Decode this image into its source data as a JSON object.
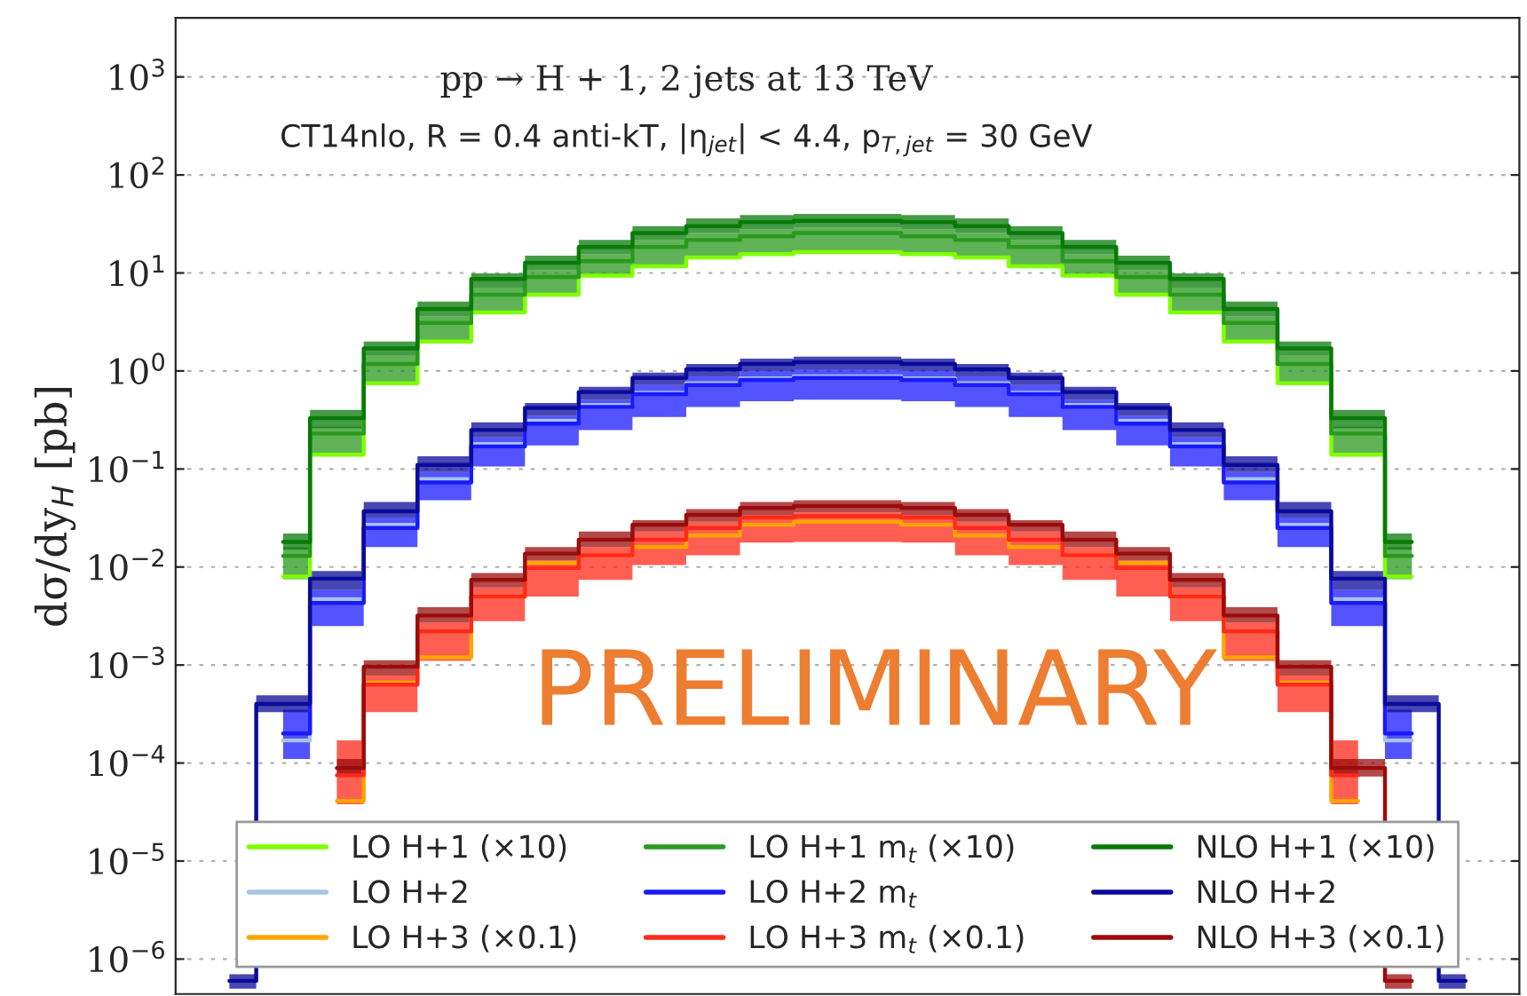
{
  "chart_data": {
    "type": "step",
    "title": "pp → H + 1, 2 jets at 13 TeV",
    "subtitle": "CT14nlo, R = 0.4 anti-kT, |η$_{jet}$| < 4.4, p$_{T,jet}$ = 30 GeV",
    "ylabel": "dσ/dy$_{H}$ [pb]",
    "annotations": [
      "PRELIMINARY"
    ],
    "categories": [
      null,
      null,
      null,
      null,
      null,
      null,
      null,
      null,
      null,
      null,
      null,
      null,
      null,
      null,
      null,
      null,
      null,
      null,
      null,
      null,
      null,
      null,
      null,
      null
    ],
    "log": "y",
    "ylim": [
      4.4e-07,
      4000
    ],
    "yticks": [
      {
        "value": 1e-06,
        "label": "10$^{−6}$"
      },
      {
        "value": 1e-05,
        "label": "10$^{−5}$"
      },
      {
        "value": 0.0001,
        "label": "10$^{−4}$"
      },
      {
        "value": 0.001,
        "label": "10$^{−3}$"
      },
      {
        "value": 0.01,
        "label": "10$^{−2}$"
      },
      {
        "value": 0.1,
        "label": "10$^{−1}$"
      },
      {
        "value": 1,
        "label": "10$^{0}$"
      },
      {
        "value": 10,
        "label": "10$^{1}$"
      },
      {
        "value": 100,
        "label": "10$^{2}$"
      },
      {
        "value": 1000,
        "label": "10$^{3}$"
      }
    ],
    "grid": "y",
    "legend": "bottom",
    "tick_labels": "y",
    "series": [
      {
        "name": "LO H+1 (×10)",
        "color": "#7fff00",
        "values": [
          null,
          0.008,
          0.14,
          0.75,
          2.0,
          3.95,
          6.0,
          9.4,
          11.7,
          14.4,
          15.6,
          16.3,
          16.3,
          15.6,
          14.4,
          11.7,
          9.4,
          6.0,
          3.95,
          2.0,
          0.75,
          0.14,
          0.008,
          null
        ]
      },
      {
        "name": "LO H+2",
        "color": "#a6c4e4",
        "values": [
          null,
          0.00017,
          0.0047,
          0.027,
          0.079,
          0.18,
          0.31,
          0.45,
          0.6,
          0.75,
          0.84,
          0.88,
          0.88,
          0.84,
          0.75,
          0.6,
          0.45,
          0.31,
          0.18,
          0.079,
          0.027,
          0.0047,
          0.00017,
          null
        ]
      },
      {
        "name": "LO H+3 (×0.1)",
        "color": "#ffa500",
        "values": [
          null,
          null,
          4.1e-05,
          0.00066,
          0.0012,
          0.005,
          0.011,
          0.0132,
          0.016,
          0.021,
          0.027,
          0.029,
          0.029,
          0.027,
          0.021,
          0.016,
          0.0132,
          0.011,
          0.005,
          0.0012,
          0.00066,
          4.1e-05,
          null,
          null
        ]
      },
      {
        "name": "LO H+1 m$_{t}$ (×10)",
        "color": "#2a9a1e",
        "values": [
          null,
          0.013,
          0.23,
          1.18,
          3.1,
          6.0,
          9.1,
          13.2,
          18.4,
          21.7,
          23.6,
          25.6,
          25.6,
          23.6,
          21.7,
          18.4,
          13.2,
          9.1,
          6.0,
          3.1,
          1.18,
          0.23,
          0.013,
          null
        ],
        "lower": [
          null,
          0.0075,
          0.14,
          0.72,
          1.95,
          3.8,
          5.75,
          9.1,
          11.7,
          14.4,
          15.6,
          16.3,
          16.3,
          15.6,
          14.4,
          11.7,
          9.1,
          5.75,
          3.8,
          1.95,
          0.72,
          0.14,
          0.0075,
          null
        ],
        "upper": [
          null,
          0.016,
          0.27,
          1.45,
          3.6,
          7.1,
          10.7,
          15.6,
          21.7,
          25.6,
          28,
          29,
          29,
          28,
          25.6,
          21.7,
          15.6,
          10.7,
          7.1,
          3.6,
          1.45,
          0.27,
          0.016,
          null
        ]
      },
      {
        "name": "LO H+2 m$_{t}$",
        "color": "#1a1aff",
        "values": [
          null,
          0.0002,
          0.0043,
          0.025,
          0.073,
          0.17,
          0.29,
          0.43,
          0.58,
          0.72,
          0.81,
          0.85,
          0.85,
          0.81,
          0.72,
          0.58,
          0.43,
          0.29,
          0.17,
          0.073,
          0.025,
          0.0043,
          0.0002,
          null
        ],
        "lower": [
          null,
          0.00011,
          0.0025,
          0.016,
          0.048,
          0.106,
          0.174,
          0.25,
          0.34,
          0.43,
          0.49,
          0.51,
          0.51,
          0.49,
          0.43,
          0.34,
          0.25,
          0.174,
          0.106,
          0.048,
          0.016,
          0.0025,
          0.00011,
          null
        ],
        "upper": [
          null,
          0.00035,
          0.0058,
          0.032,
          0.093,
          0.21,
          0.35,
          0.51,
          0.72,
          0.88,
          1.0,
          1.04,
          1.04,
          1.0,
          0.88,
          0.72,
          0.51,
          0.35,
          0.21,
          0.093,
          0.032,
          0.0058,
          0.00035,
          null
        ]
      },
      {
        "name": "LO H+3 m$_{t}$ (×0.1)",
        "color": "#ff2a1a",
        "values": [
          null,
          null,
          7.5e-05,
          0.00063,
          0.0022,
          0.005,
          0.0098,
          0.0132,
          0.019,
          0.025,
          0.032,
          0.033,
          0.033,
          0.032,
          0.025,
          0.019,
          0.0132,
          0.0098,
          0.005,
          0.0022,
          0.00063,
          7.5e-05,
          null,
          null
        ],
        "lower": [
          null,
          null,
          3.8e-05,
          0.00033,
          0.0011,
          0.0028,
          0.005,
          0.0074,
          0.0105,
          0.0132,
          0.0177,
          0.018,
          0.018,
          0.0177,
          0.0132,
          0.0105,
          0.0074,
          0.005,
          0.0028,
          0.0011,
          0.00033,
          3.8e-05,
          null,
          null
        ],
        "upper": [
          null,
          null,
          0.00017,
          0.00078,
          0.0027,
          0.0062,
          0.0117,
          0.016,
          0.023,
          0.029,
          0.034,
          0.036,
          0.036,
          0.034,
          0.029,
          0.023,
          0.016,
          0.0117,
          0.0062,
          0.0027,
          0.00078,
          0.00017,
          null,
          null
        ]
      },
      {
        "name": "NLO H+1 (×10)",
        "color": "#087a08",
        "values": [
          null,
          0.018,
          0.33,
          1.7,
          4.3,
          8.7,
          12.7,
          18.4,
          25.6,
          30,
          33,
          34,
          34,
          33,
          30,
          25.6,
          18.4,
          12.7,
          8.7,
          4.3,
          1.7,
          0.33,
          0.018,
          null
        ],
        "lower": [
          null,
          0.015,
          0.26,
          1.45,
          3.6,
          7.1,
          10.7,
          15.6,
          21.7,
          25.6,
          28,
          29,
          29,
          28,
          25.6,
          21.7,
          15.6,
          10.7,
          7.1,
          3.6,
          1.45,
          0.26,
          0.015,
          null
        ],
        "upper": [
          null,
          0.022,
          0.4,
          2.0,
          5.1,
          9.9,
          15,
          21.7,
          30,
          36,
          39,
          40,
          40,
          39,
          36,
          30,
          21.7,
          15,
          9.9,
          5.1,
          2.0,
          0.4,
          0.022,
          null
        ]
      },
      {
        "name": "NLO H+2",
        "color": "#0a0a9a",
        "values": [
          6e-07,
          0.0004,
          0.0076,
          0.037,
          0.11,
          0.25,
          0.42,
          0.61,
          0.85,
          1.04,
          1.18,
          1.23,
          1.23,
          1.18,
          1.04,
          0.85,
          0.61,
          0.42,
          0.25,
          0.11,
          0.037,
          0.0076,
          0.0004,
          6e-07
        ],
        "lower": [
          5e-07,
          0.00033,
          0.0058,
          0.032,
          0.093,
          0.21,
          0.35,
          0.51,
          0.72,
          0.88,
          1.0,
          1.04,
          1.04,
          1.0,
          0.88,
          0.72,
          0.51,
          0.35,
          0.21,
          0.093,
          0.032,
          0.0058,
          0.00033,
          5e-07
        ],
        "upper": [
          7e-07,
          0.00049,
          0.0091,
          0.046,
          0.135,
          0.3,
          0.47,
          0.69,
          0.96,
          1.18,
          1.34,
          1.4,
          1.4,
          1.34,
          1.18,
          0.96,
          0.69,
          0.47,
          0.3,
          0.135,
          0.046,
          0.0091,
          0.00049,
          7e-07
        ]
      },
      {
        "name": "NLO H+3 (×0.1)",
        "color": "#9a0c0c",
        "values": [
          null,
          null,
          8.9e-05,
          0.00096,
          0.0032,
          0.0074,
          0.0137,
          0.019,
          0.027,
          0.034,
          0.04,
          0.042,
          0.042,
          0.04,
          0.034,
          0.027,
          0.019,
          0.0137,
          0.0074,
          0.0032,
          0.00096,
          8.9e-05,
          6e-07,
          null
        ],
        "lower": [
          null,
          null,
          7.3e-05,
          0.00078,
          0.0027,
          0.0062,
          0.0117,
          0.016,
          0.023,
          0.029,
          0.034,
          0.036,
          0.036,
          0.034,
          0.029,
          0.023,
          0.016,
          0.0117,
          0.0062,
          0.0027,
          0.00078,
          7.3e-05,
          5e-07,
          null
        ],
        "upper": [
          null,
          null,
          0.00011,
          0.00112,
          0.0039,
          0.0087,
          0.016,
          0.023,
          0.03,
          0.039,
          0.046,
          0.048,
          0.048,
          0.046,
          0.039,
          0.03,
          0.023,
          0.016,
          0.0087,
          0.0039,
          0.00112,
          0.00011,
          7e-07,
          null
        ]
      }
    ]
  }
}
